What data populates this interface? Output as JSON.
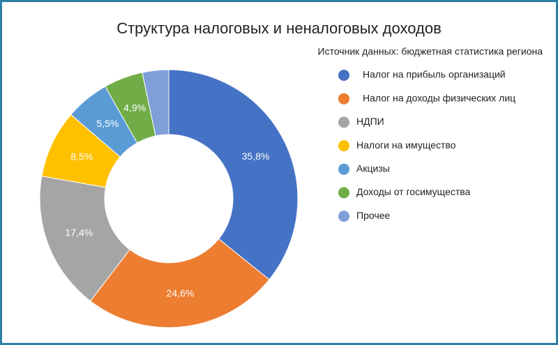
{
  "chart_data": {
    "type": "donut",
    "title": "Структура налоговых и неналоговых доходов",
    "subtitle": "Источник данных: бюджетная статистика региона",
    "categories": [
      "Налог на прибыль организаций",
      "Налог на доходы физических лиц",
      "НДПИ",
      "Налоги на имущество",
      "Акцизы",
      "Доходы от госимущества",
      "Прочее"
    ],
    "values": [
      35.8,
      24.6,
      17.4,
      8.5,
      5.5,
      4.9,
      3.3
    ],
    "value_labels": [
      "35,8%",
      "24,6%",
      "17,4%",
      "8,5%",
      "5,5%",
      "4,9%",
      null
    ],
    "colors": [
      "#4472c4",
      "#ed7d31",
      "#a5a5a5",
      "#ffc000",
      "#5b9bd5",
      "#70ad47",
      "#7f9fd8"
    ],
    "legend": "right"
  }
}
